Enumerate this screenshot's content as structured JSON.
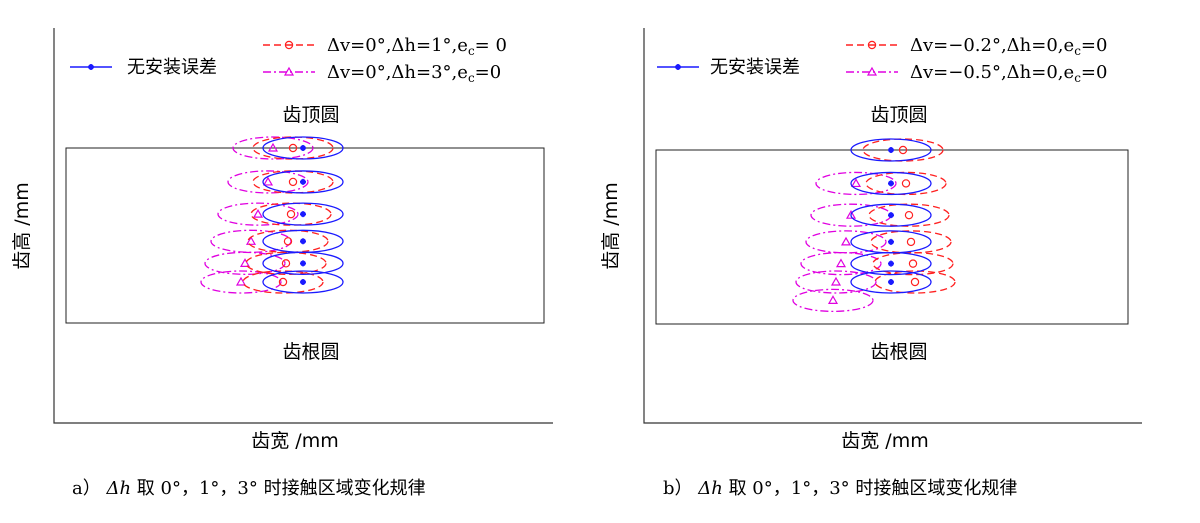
{
  "chart_data": [
    {
      "type": "scatter",
      "panel": "a",
      "caption_prefix": "a）",
      "caption_math": "Δh",
      "caption_text": "取 0°，1°，3° 时接触区域变化规律",
      "xlabel": "齿宽 /mm",
      "ylabel": "齿高 /mm",
      "annotations": {
        "top": "齿顶圆",
        "bottom": "齿根圆"
      },
      "legend_placement": "top",
      "series": [
        {
          "name": "无安装误差",
          "color": "#1a1aff",
          "style": "solid",
          "marker": "star",
          "points": [
            {
              "x": 0.0,
              "y": 1.0
            },
            {
              "x": 0.0,
              "y": 0.8
            },
            {
              "x": 0.0,
              "y": 0.61
            },
            {
              "x": 0.0,
              "y": 0.45
            },
            {
              "x": 0.0,
              "y": 0.32
            },
            {
              "x": 0.0,
              "y": 0.21
            }
          ]
        },
        {
          "name": "Δv=0°,Δh=1°,e",
          "sub": "c",
          "tail": "= 0",
          "color": "#ff2020",
          "style": "dashed",
          "marker": "circle",
          "points": [
            {
              "x": -0.1,
              "y": 1.0
            },
            {
              "x": -0.1,
              "y": 0.8
            },
            {
              "x": -0.12,
              "y": 0.61
            },
            {
              "x": -0.15,
              "y": 0.45
            },
            {
              "x": -0.17,
              "y": 0.32
            },
            {
              "x": -0.2,
              "y": 0.21
            }
          ]
        },
        {
          "name": "Δv=0°,Δh=3°,e",
          "sub": "c",
          "tail": "=0",
          "color": "#e000e0",
          "style": "dashdot",
          "marker": "triangle",
          "points": [
            {
              "x": -0.3,
              "y": 1.0
            },
            {
              "x": -0.35,
              "y": 0.8
            },
            {
              "x": -0.45,
              "y": 0.61
            },
            {
              "x": -0.52,
              "y": 0.45
            },
            {
              "x": -0.58,
              "y": 0.32
            },
            {
              "x": -0.62,
              "y": 0.21
            }
          ]
        }
      ]
    },
    {
      "type": "scatter",
      "panel": "b",
      "caption_prefix": "b）",
      "caption_math": "Δh",
      "caption_text": "取 0°，1°，3° 时接触区域变化规律",
      "xlabel": "齿宽 /mm",
      "ylabel": "齿高 /mm",
      "annotations": {
        "top": "齿顶圆",
        "bottom": "齿根圆"
      },
      "legend_placement": "top",
      "series": [
        {
          "name": "无安装误差",
          "color": "#1a1aff",
          "style": "solid",
          "marker": "star",
          "points": [
            {
              "x": 0.0,
              "y": 1.0
            },
            {
              "x": 0.0,
              "y": 0.8
            },
            {
              "x": 0.0,
              "y": 0.61
            },
            {
              "x": 0.0,
              "y": 0.45
            },
            {
              "x": 0.0,
              "y": 0.32
            },
            {
              "x": 0.0,
              "y": 0.21
            }
          ]
        },
        {
          "name": "Δv=−0.2°,Δh=0,e",
          "sub": "c",
          "tail": "=0",
          "color": "#ff2020",
          "style": "dashed",
          "marker": "circle",
          "points": [
            {
              "x": 0.12,
              "y": 1.0
            },
            {
              "x": 0.15,
              "y": 0.8
            },
            {
              "x": 0.18,
              "y": 0.61
            },
            {
              "x": 0.2,
              "y": 0.45
            },
            {
              "x": 0.22,
              "y": 0.32
            },
            {
              "x": 0.24,
              "y": 0.21
            }
          ]
        },
        {
          "name": "Δv=−0.5°,Δh=0,e",
          "sub": "c",
          "tail": "=0",
          "color": "#e000e0",
          "style": "dashdot",
          "marker": "triangle",
          "points": [
            {
              "x": -0.35,
              "y": 0.8
            },
            {
              "x": -0.4,
              "y": 0.61
            },
            {
              "x": -0.45,
              "y": 0.45
            },
            {
              "x": -0.5,
              "y": 0.32
            },
            {
              "x": -0.55,
              "y": 0.21
            },
            {
              "x": -0.58,
              "y": 0.1
            }
          ]
        }
      ]
    }
  ]
}
